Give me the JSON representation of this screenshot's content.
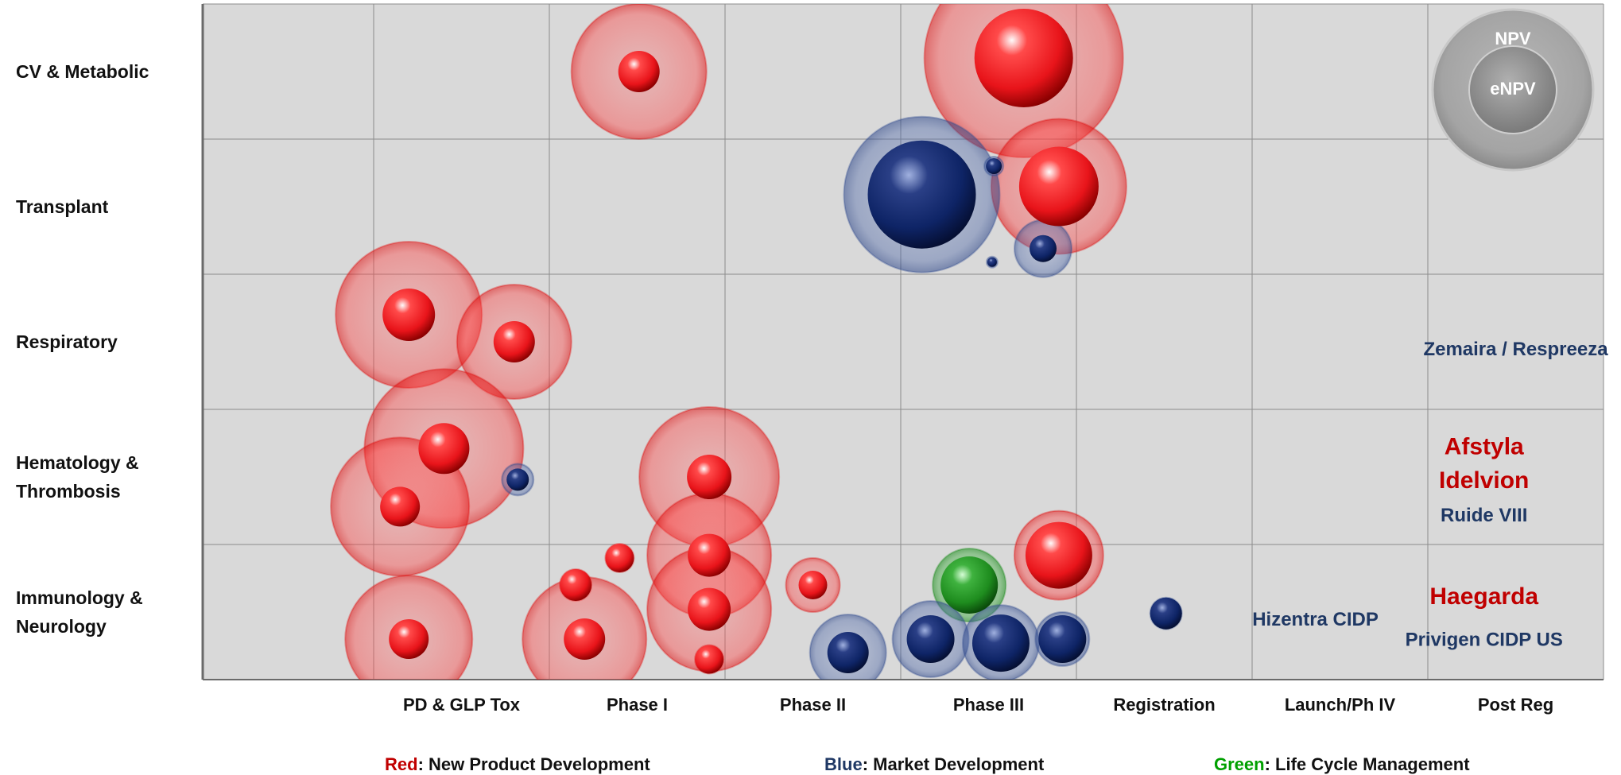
{
  "chart_data": {
    "type": "bubble",
    "title": "",
    "rows": [
      "CV & Metabolic",
      "Transplant",
      "Respiratory",
      "Hematology & Thrombosis",
      "Immunology & Neurology"
    ],
    "row_label_lines": [
      [
        "CV & Metabolic"
      ],
      [
        "Transplant"
      ],
      [
        "Respiratory"
      ],
      [
        "Hematology &",
        "Thrombosis"
      ],
      [
        "Immunology &",
        "Neurology"
      ]
    ],
    "columns": [
      "PD & GLP Tox",
      "Phase I",
      "Phase II",
      "Phase III",
      "Registration",
      "Launch/Ph IV",
      "Post Reg"
    ],
    "colors": {
      "new": "#e8141a",
      "market": "#0e2466",
      "lcm": "#1e8c1e",
      "plot_bg": "#d9d9d9",
      "grid": "#8c8c8c",
      "red_text": "#c00000",
      "blue_text": "#1f3864",
      "green_text": "#00a000"
    },
    "legend": [
      {
        "key": "Red",
        "text": ": New Product Development",
        "type": "new"
      },
      {
        "key": "Blue",
        "text": ": Market Development",
        "type": "market"
      },
      {
        "key": "Green",
        "text": ": Life Cycle Management",
        "type": "lcm"
      }
    ],
    "size_key": {
      "outer": "NPV",
      "inner": "eNPV"
    },
    "bubbles": [
      {
        "type": "new",
        "col": 1.51,
        "row": 0.5,
        "npv": 85,
        "enpv": 26
      },
      {
        "type": "new",
        "col": 3.7,
        "row": 0.4,
        "npv": 125,
        "enpv": 62
      },
      {
        "type": "new",
        "col": 3.9,
        "row": 1.35,
        "npv": 85,
        "enpv": 50
      },
      {
        "type": "market",
        "col": 3.12,
        "row": 1.41,
        "npv": 98,
        "enpv": 68
      },
      {
        "type": "market",
        "col": 3.53,
        "row": 1.2,
        "npv": 12,
        "enpv": 10
      },
      {
        "type": "market",
        "col": 3.52,
        "row": 1.91,
        "npv": 7,
        "enpv": 6
      },
      {
        "type": "market",
        "col": 3.81,
        "row": 1.81,
        "npv": 36,
        "enpv": 17
      },
      {
        "type": "new",
        "col": 0.2,
        "row": 2.3,
        "npv": 92,
        "enpv": 33
      },
      {
        "type": "new",
        "col": 0.8,
        "row": 2.5,
        "npv": 72,
        "enpv": 26
      },
      {
        "type": "new",
        "col": 0.4,
        "row": 3.29,
        "npv": 100,
        "enpv": 32
      },
      {
        "type": "new",
        "col": 0.15,
        "row": 3.72,
        "npv": 87,
        "enpv": 25
      },
      {
        "type": "market",
        "col": 0.82,
        "row": 3.52,
        "npv": 20,
        "enpv": 14
      },
      {
        "type": "new",
        "col": 1.91,
        "row": 3.5,
        "npv": 88,
        "enpv": 28
      },
      {
        "type": "new",
        "col": 1.91,
        "row": 4.08,
        "npv": 78,
        "enpv": 27
      },
      {
        "type": "new",
        "col": 1.91,
        "row": 4.48,
        "npv": 78,
        "enpv": 27
      },
      {
        "type": "new",
        "col": 1.4,
        "row": 4.1,
        "npv": 18,
        "enpv": 18
      },
      {
        "type": "new",
        "col": 1.15,
        "row": 4.3,
        "npv": 20,
        "enpv": 20
      },
      {
        "type": "new",
        "col": 1.2,
        "row": 4.7,
        "npv": 78,
        "enpv": 26
      },
      {
        "type": "new",
        "col": 1.91,
        "row": 4.85,
        "npv": 18,
        "enpv": 18
      },
      {
        "type": "new",
        "col": 0.2,
        "row": 4.7,
        "npv": 80,
        "enpv": 25
      },
      {
        "type": "new",
        "col": 2.5,
        "row": 4.3,
        "npv": 34,
        "enpv": 18
      },
      {
        "type": "lcm",
        "col": 3.39,
        "row": 4.3,
        "npv": 46,
        "enpv": 36
      },
      {
        "type": "new",
        "col": 3.9,
        "row": 4.08,
        "npv": 56,
        "enpv": 42
      },
      {
        "type": "market",
        "col": 2.7,
        "row": 4.8,
        "npv": 48,
        "enpv": 26
      },
      {
        "type": "market",
        "col": 3.17,
        "row": 4.7,
        "npv": 48,
        "enpv": 30
      },
      {
        "type": "market",
        "col": 3.57,
        "row": 4.73,
        "npv": 48,
        "enpv": 36
      },
      {
        "type": "market",
        "col": 3.92,
        "row": 4.7,
        "npv": 34,
        "enpv": 30
      },
      {
        "type": "market",
        "col": 4.51,
        "row": 4.51,
        "npv": 20,
        "enpv": 20
      }
    ],
    "products": [
      {
        "text": "Zemaira / Respreeza",
        "col": 6.5,
        "row": 2.55,
        "color": "blue_text",
        "size": 24
      },
      {
        "text": "Afstyla",
        "col": 6.32,
        "row": 3.27,
        "color": "red_text",
        "size": 30
      },
      {
        "text": "Idelvion",
        "col": 6.32,
        "row": 3.52,
        "color": "red_text",
        "size": 30
      },
      {
        "text": "Ruide VIII",
        "col": 6.32,
        "row": 3.78,
        "color": "blue_text",
        "size": 24
      },
      {
        "text": "Hizentra CIDP",
        "col": 5.36,
        "row": 4.55,
        "color": "blue_text",
        "size": 24
      },
      {
        "text": "Haegarda",
        "col": 6.32,
        "row": 4.38,
        "color": "red_text",
        "size": 30
      },
      {
        "text": "Privigen CIDP US",
        "col": 6.32,
        "row": 4.7,
        "color": "blue_text",
        "size": 24
      }
    ]
  }
}
